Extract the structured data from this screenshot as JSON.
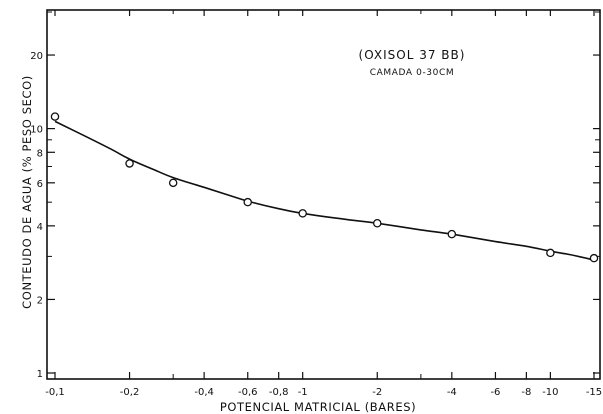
{
  "chart_data": {
    "type": "scatter",
    "title": "",
    "xlabel": "POTENCIAL  MATRICIAL (BARES)",
    "ylabel": "CONTEUDO  DE  AGUA (% PESO SECO)",
    "annotation": {
      "line1": "(OXISOL  37 BB)",
      "line2": "CAMADA 0-30CM"
    },
    "x_scale": "log of absolute matric potential",
    "y_scale": "log",
    "xlim": [
      -0.1,
      -15
    ],
    "ylim": [
      1,
      30
    ],
    "x_ticks": [
      {
        "value": -0.1,
        "label": "-0,1"
      },
      {
        "value": -0.2,
        "label": "-0,2"
      },
      {
        "value": -0.4,
        "label": "-0,4"
      },
      {
        "value": -0.6,
        "label": "-0,6"
      },
      {
        "value": -0.8,
        "label": "-0,8"
      },
      {
        "value": -1,
        "label": "-1"
      },
      {
        "value": -2,
        "label": "-2"
      },
      {
        "value": -4,
        "label": "-4"
      },
      {
        "value": -6,
        "label": "-6"
      },
      {
        "value": -8,
        "label": "-8"
      },
      {
        "value": -10,
        "label": "-10"
      },
      {
        "value": -15,
        "label": "-15"
      }
    ],
    "y_ticks": [
      {
        "value": 1,
        "label": "1"
      },
      {
        "value": 2,
        "label": "2"
      },
      {
        "value": 4,
        "label": "4"
      },
      {
        "value": 6,
        "label": "6"
      },
      {
        "value": 8,
        "label": "8"
      },
      {
        "value": 10,
        "label": "10"
      },
      {
        "value": 20,
        "label": "20"
      }
    ],
    "y_minor_ticks": [
      3,
      5,
      7,
      9,
      30
    ],
    "x_minor_ticks": [
      -0.3,
      -3
    ],
    "series": [
      {
        "kind": "points",
        "marker": "open-circle",
        "x": [
          -0.1,
          -0.2,
          -0.3,
          -0.6,
          -1,
          -2,
          -4,
          -10,
          -15
        ],
        "y": [
          11.2,
          7.2,
          6.0,
          5.0,
          4.5,
          4.1,
          3.7,
          3.1,
          2.95
        ]
      },
      {
        "kind": "fitted-curve",
        "x": [
          -0.1,
          -0.13,
          -0.17,
          -0.2,
          -0.25,
          -0.3,
          -0.4,
          -0.5,
          -0.6,
          -0.8,
          -1,
          -1.5,
          -2,
          -3,
          -4,
          -6,
          -8,
          -10,
          -12,
          -15
        ],
        "y": [
          10.7,
          9.4,
          8.2,
          7.5,
          6.8,
          6.3,
          5.75,
          5.35,
          5.05,
          4.7,
          4.5,
          4.25,
          4.1,
          3.85,
          3.7,
          3.45,
          3.3,
          3.15,
          3.05,
          2.9
        ]
      }
    ]
  }
}
